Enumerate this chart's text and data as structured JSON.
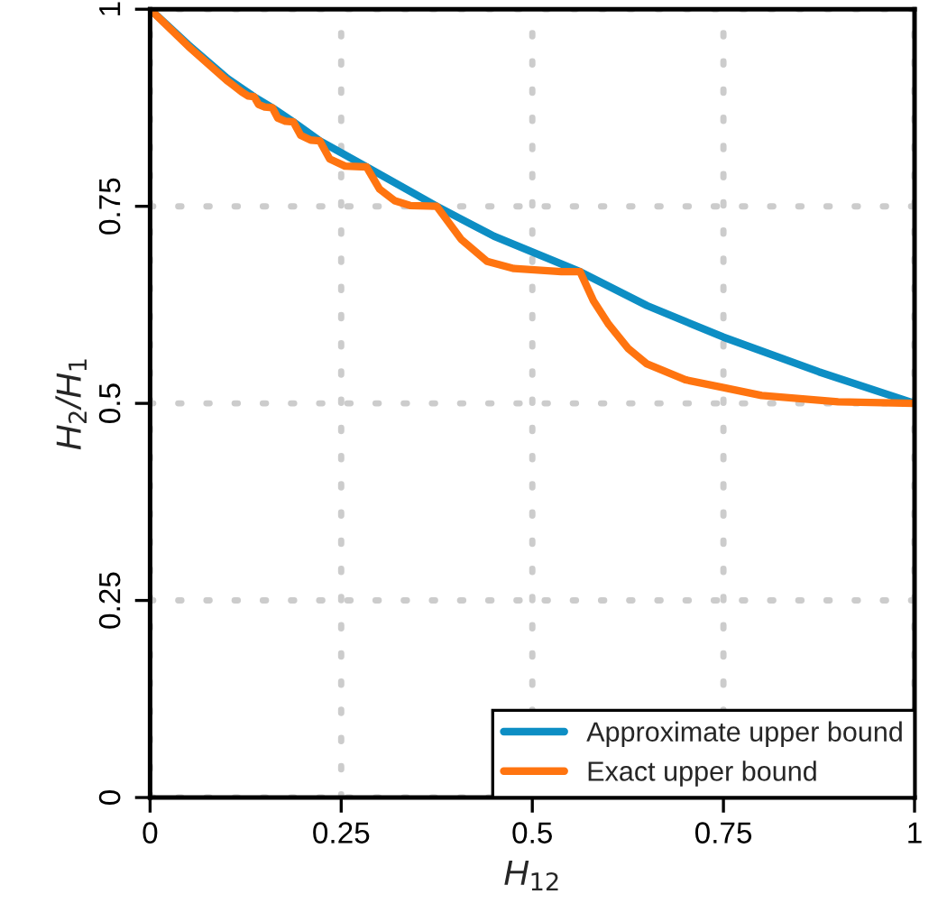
{
  "chart_data": {
    "type": "line",
    "xlabel": "H$_{12}$",
    "ylabel": "H$_{2}$/H$_{1}$",
    "xlim": [
      0,
      1
    ],
    "ylim": [
      0,
      1
    ],
    "xticks": [
      0,
      0.25,
      0.5,
      0.75,
      1
    ],
    "yticks": [
      0,
      0.25,
      0.5,
      0.75,
      1
    ],
    "grid": true,
    "legend": "bottom right",
    "line_style": "solid",
    "marker": "none",
    "series": [
      {
        "name": "Approximate upper bound",
        "color": "#0d8ec4",
        "x": [
          0,
          0.05,
          0.1,
          0.136,
          0.16,
          0.1875,
          0.222,
          0.283,
          0.375,
          0.45,
          0.5625,
          0.65,
          0.75,
          0.875,
          1
        ],
        "values": [
          1,
          0.955,
          0.913,
          0.889,
          0.875,
          0.857,
          0.833,
          0.8,
          0.75,
          0.712,
          0.667,
          0.624,
          0.584,
          0.54,
          0.5
        ]
      },
      {
        "name": "Exact upper bound",
        "color": "#ff7410",
        "x": [
          0,
          0.05,
          0.1,
          0.12,
          0.128,
          0.136,
          0.142,
          0.15,
          0.16,
          0.167,
          0.177,
          0.1875,
          0.197,
          0.21,
          0.222,
          0.235,
          0.255,
          0.283,
          0.3,
          0.32,
          0.34,
          0.375,
          0.407,
          0.441,
          0.476,
          0.538,
          0.5625,
          0.58,
          0.6,
          0.625,
          0.65,
          0.7,
          0.75,
          0.8,
          0.9,
          1
        ],
        "values": [
          1,
          0.953,
          0.91,
          0.895,
          0.89,
          0.889,
          0.879,
          0.876,
          0.875,
          0.862,
          0.858,
          0.857,
          0.84,
          0.834,
          0.833,
          0.81,
          0.801,
          0.8,
          0.772,
          0.757,
          0.751,
          0.75,
          0.708,
          0.68,
          0.671,
          0.667,
          0.667,
          0.63,
          0.6,
          0.57,
          0.55,
          0.53,
          0.52,
          0.51,
          0.502,
          0.5
        ]
      }
    ]
  }
}
